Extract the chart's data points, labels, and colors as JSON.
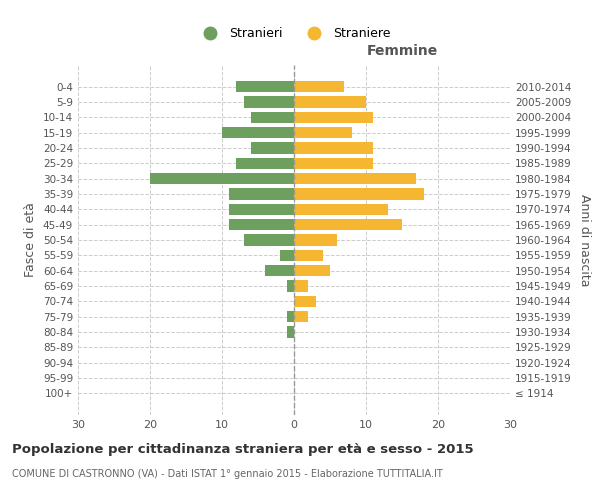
{
  "age_groups": [
    "100+",
    "95-99",
    "90-94",
    "85-89",
    "80-84",
    "75-79",
    "70-74",
    "65-69",
    "60-64",
    "55-59",
    "50-54",
    "45-49",
    "40-44",
    "35-39",
    "30-34",
    "25-29",
    "20-24",
    "15-19",
    "10-14",
    "5-9",
    "0-4"
  ],
  "birth_years": [
    "≤ 1914",
    "1915-1919",
    "1920-1924",
    "1925-1929",
    "1930-1934",
    "1935-1939",
    "1940-1944",
    "1945-1949",
    "1950-1954",
    "1955-1959",
    "1960-1964",
    "1965-1969",
    "1970-1974",
    "1975-1979",
    "1980-1984",
    "1985-1989",
    "1990-1994",
    "1995-1999",
    "2000-2004",
    "2005-2009",
    "2010-2014"
  ],
  "males": [
    0,
    0,
    0,
    0,
    1,
    1,
    0,
    1,
    4,
    2,
    7,
    9,
    9,
    9,
    20,
    8,
    6,
    10,
    6,
    7,
    8
  ],
  "females": [
    0,
    0,
    0,
    0,
    0,
    2,
    3,
    2,
    5,
    4,
    6,
    15,
    13,
    18,
    17,
    11,
    11,
    8,
    11,
    10,
    7
  ],
  "male_color": "#6d9f5e",
  "female_color": "#f5b731",
  "title": "Popolazione per cittadinanza straniera per età e sesso - 2015",
  "subtitle": "COMUNE DI CASTRONNO (VA) - Dati ISTAT 1° gennaio 2015 - Elaborazione TUTTITALIA.IT",
  "xlabel_right": "Femmine",
  "ylabel_left": "Fasce di età",
  "ylabel_right": "Anni di nascita",
  "legend_males": "Stranieri",
  "legend_females": "Straniere",
  "xlim": 30,
  "background_color": "#ffffff",
  "grid_color": "#cccccc"
}
